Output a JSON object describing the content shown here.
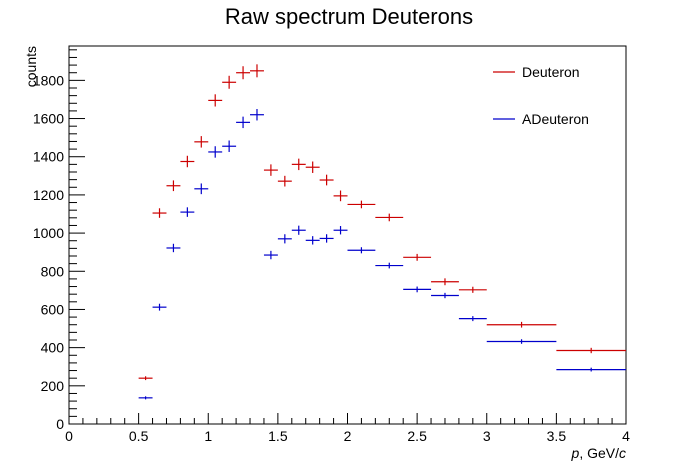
{
  "chart_data": {
    "type": "scatter",
    "title": "Raw spectrum Deuterons",
    "xlabel_italic": "p",
    "xlabel_rest": ", GeV/",
    "xlabel_italic2": "c",
    "ylabel": "counts",
    "xlim": [
      0,
      4
    ],
    "ylim": [
      0,
      1980
    ],
    "x_major_ticks": [
      0,
      0.5,
      1,
      1.5,
      2,
      2.5,
      3,
      3.5,
      4
    ],
    "x_tick_labels": [
      "0",
      "0.5",
      "1",
      "1.5",
      "2",
      "2.5",
      "3",
      "3.5",
      "4"
    ],
    "y_major_ticks": [
      0,
      200,
      400,
      600,
      800,
      1000,
      1200,
      1400,
      1600,
      1800
    ],
    "y_tick_labels": [
      "0",
      "200",
      "400",
      "600",
      "800",
      "1000",
      "1200",
      "1400",
      "1600",
      "1800"
    ],
    "legend_position": "top-right",
    "series": [
      {
        "name": "Deuteron",
        "color": "#cc0000",
        "points": [
          {
            "x": 0.55,
            "xerr": 0.05,
            "y": 240,
            "yerr": 10
          },
          {
            "x": 0.65,
            "xerr": 0.05,
            "y": 1105,
            "yerr": 25
          },
          {
            "x": 0.75,
            "xerr": 0.05,
            "y": 1248,
            "yerr": 28
          },
          {
            "x": 0.85,
            "xerr": 0.05,
            "y": 1375,
            "yerr": 30
          },
          {
            "x": 0.95,
            "xerr": 0.05,
            "y": 1478,
            "yerr": 30
          },
          {
            "x": 1.05,
            "xerr": 0.05,
            "y": 1695,
            "yerr": 32
          },
          {
            "x": 1.15,
            "xerr": 0.05,
            "y": 1790,
            "yerr": 34
          },
          {
            "x": 1.25,
            "xerr": 0.05,
            "y": 1840,
            "yerr": 34
          },
          {
            "x": 1.35,
            "xerr": 0.05,
            "y": 1850,
            "yerr": 34
          },
          {
            "x": 1.45,
            "xerr": 0.05,
            "y": 1330,
            "yerr": 30
          },
          {
            "x": 1.55,
            "xerr": 0.05,
            "y": 1272,
            "yerr": 28
          },
          {
            "x": 1.65,
            "xerr": 0.05,
            "y": 1360,
            "yerr": 30
          },
          {
            "x": 1.75,
            "xerr": 0.05,
            "y": 1345,
            "yerr": 30
          },
          {
            "x": 1.85,
            "xerr": 0.05,
            "y": 1278,
            "yerr": 28
          },
          {
            "x": 1.95,
            "xerr": 0.05,
            "y": 1195,
            "yerr": 28
          },
          {
            "x": 2.1,
            "xerr": 0.1,
            "y": 1150,
            "yerr": 20
          },
          {
            "x": 2.3,
            "xerr": 0.1,
            "y": 1082,
            "yerr": 20
          },
          {
            "x": 2.5,
            "xerr": 0.1,
            "y": 873,
            "yerr": 18
          },
          {
            "x": 2.7,
            "xerr": 0.1,
            "y": 745,
            "yerr": 18
          },
          {
            "x": 2.9,
            "xerr": 0.1,
            "y": 703,
            "yerr": 16
          },
          {
            "x": 3.25,
            "xerr": 0.25,
            "y": 520,
            "yerr": 15
          },
          {
            "x": 3.75,
            "xerr": 0.25,
            "y": 385,
            "yerr": 14
          }
        ]
      },
      {
        "name": "ADeuteron",
        "color": "#0000cc",
        "points": [
          {
            "x": 0.55,
            "xerr": 0.05,
            "y": 137,
            "yerr": 8
          },
          {
            "x": 0.65,
            "xerr": 0.05,
            "y": 612,
            "yerr": 18
          },
          {
            "x": 0.75,
            "xerr": 0.05,
            "y": 922,
            "yerr": 22
          },
          {
            "x": 0.85,
            "xerr": 0.05,
            "y": 1110,
            "yerr": 25
          },
          {
            "x": 0.95,
            "xerr": 0.05,
            "y": 1232,
            "yerr": 28
          },
          {
            "x": 1.05,
            "xerr": 0.05,
            "y": 1425,
            "yerr": 30
          },
          {
            "x": 1.15,
            "xerr": 0.05,
            "y": 1455,
            "yerr": 30
          },
          {
            "x": 1.25,
            "xerr": 0.05,
            "y": 1580,
            "yerr": 30
          },
          {
            "x": 1.35,
            "xerr": 0.05,
            "y": 1620,
            "yerr": 30
          },
          {
            "x": 1.45,
            "xerr": 0.05,
            "y": 885,
            "yerr": 22
          },
          {
            "x": 1.55,
            "xerr": 0.05,
            "y": 970,
            "yerr": 24
          },
          {
            "x": 1.65,
            "xerr": 0.05,
            "y": 1015,
            "yerr": 24
          },
          {
            "x": 1.75,
            "xerr": 0.05,
            "y": 962,
            "yerr": 22
          },
          {
            "x": 1.85,
            "xerr": 0.05,
            "y": 972,
            "yerr": 22
          },
          {
            "x": 1.95,
            "xerr": 0.05,
            "y": 1015,
            "yerr": 22
          },
          {
            "x": 2.1,
            "xerr": 0.1,
            "y": 910,
            "yerr": 16
          },
          {
            "x": 2.3,
            "xerr": 0.1,
            "y": 830,
            "yerr": 15
          },
          {
            "x": 2.5,
            "xerr": 0.1,
            "y": 705,
            "yerr": 15
          },
          {
            "x": 2.7,
            "xerr": 0.1,
            "y": 673,
            "yerr": 14
          },
          {
            "x": 2.9,
            "xerr": 0.1,
            "y": 552,
            "yerr": 13
          },
          {
            "x": 3.25,
            "xerr": 0.25,
            "y": 432,
            "yerr": 12
          },
          {
            "x": 3.75,
            "xerr": 0.25,
            "y": 285,
            "yerr": 10
          }
        ]
      }
    ]
  }
}
